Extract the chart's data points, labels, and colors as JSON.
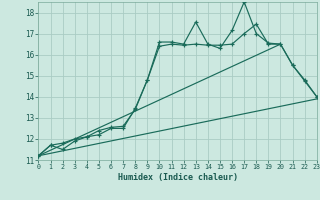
{
  "xlabel": "Humidex (Indice chaleur)",
  "xlim": [
    0,
    23
  ],
  "ylim": [
    11,
    18.5
  ],
  "yticks": [
    11,
    12,
    13,
    14,
    15,
    16,
    17,
    18
  ],
  "xticks": [
    0,
    1,
    2,
    3,
    4,
    5,
    6,
    7,
    8,
    9,
    10,
    11,
    12,
    13,
    14,
    15,
    16,
    17,
    18,
    19,
    20,
    21,
    22,
    23
  ],
  "bg_color": "#cce8e0",
  "grid_color": "#aaccc4",
  "line_color": "#1a6b5a",
  "line1_x": [
    0,
    1,
    2,
    3,
    4,
    5,
    6,
    7,
    8,
    9,
    10,
    11,
    12,
    13,
    14,
    15,
    16,
    17,
    18,
    19,
    20,
    21,
    22,
    23
  ],
  "line1_y": [
    11.2,
    11.7,
    11.5,
    11.9,
    12.1,
    12.2,
    12.5,
    12.5,
    13.45,
    14.8,
    16.6,
    16.6,
    16.5,
    17.55,
    16.5,
    16.3,
    17.15,
    18.5,
    17.0,
    16.55,
    16.5,
    15.5,
    14.75,
    14.0
  ],
  "line2_x": [
    0,
    1,
    2,
    3,
    4,
    5,
    6,
    7,
    8,
    9,
    10,
    11,
    12,
    13,
    14,
    15,
    16,
    17,
    18,
    19,
    20,
    21,
    22,
    23
  ],
  "line2_y": [
    11.2,
    11.7,
    11.8,
    12.0,
    12.1,
    12.4,
    12.55,
    12.6,
    13.4,
    14.8,
    16.4,
    16.5,
    16.45,
    16.5,
    16.45,
    16.45,
    16.5,
    17.0,
    17.45,
    16.5,
    16.5,
    15.5,
    14.8,
    14.0
  ],
  "line3_x": [
    0,
    23
  ],
  "line3_y": [
    11.2,
    13.9
  ],
  "line4_x": [
    0,
    20
  ],
  "line4_y": [
    11.2,
    16.5
  ]
}
